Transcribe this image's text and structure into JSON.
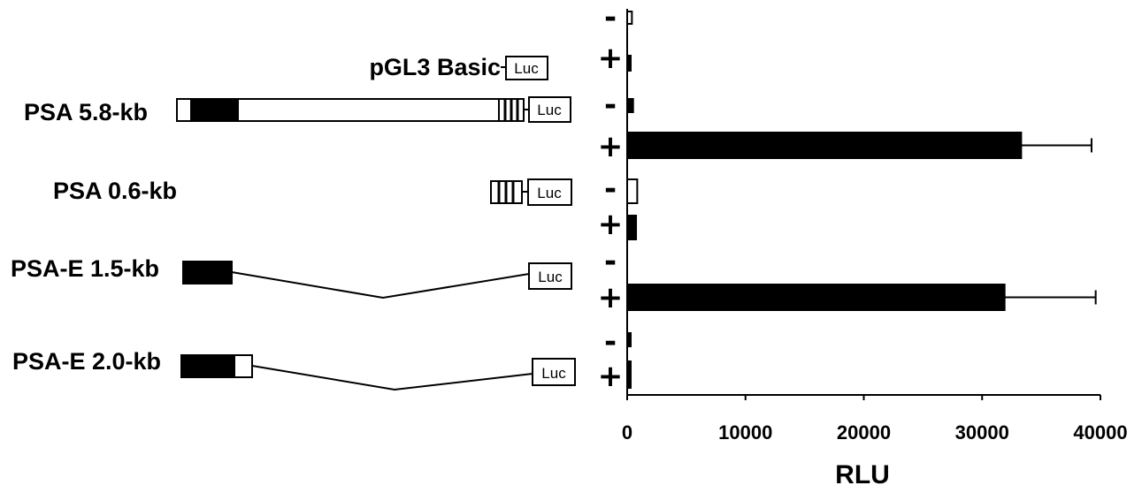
{
  "constructs": [
    {
      "label": "pGL3 Basic"
    },
    {
      "label": "PSA 5.8-kb"
    },
    {
      "label": "PSA 0.6-kb"
    },
    {
      "label": "PSA-E 1.5-kb"
    },
    {
      "label": "PSA-E 2.0-kb"
    }
  ],
  "luc_label": "Luc",
  "treatments": {
    "minus": "-",
    "plus": "+"
  },
  "chart_data": {
    "type": "bar",
    "orientation": "horizontal",
    "xlabel": "RLU",
    "xlim": [
      0,
      40000
    ],
    "x_ticks": [
      "0",
      "10000",
      "20000",
      "30000",
      "40000"
    ],
    "grid": false,
    "bars": [
      {
        "construct": "pGL3 Basic",
        "treatment": "-",
        "value": 400,
        "fill": "white",
        "error": null
      },
      {
        "construct": "pGL3 Basic",
        "treatment": "+",
        "value": 200,
        "fill": "black",
        "error": null
      },
      {
        "construct": "PSA 5.8-kb",
        "treatment": "-",
        "value": 500,
        "fill": "black",
        "error": null
      },
      {
        "construct": "PSA 5.8-kb",
        "treatment": "+",
        "value": 33300,
        "fill": "black",
        "error": 5950
      },
      {
        "construct": "PSA 0.6-kb",
        "treatment": "-",
        "value": 850,
        "fill": "white",
        "error": null
      },
      {
        "construct": "PSA 0.6-kb",
        "treatment": "+",
        "value": 750,
        "fill": "black",
        "error": null
      },
      {
        "construct": "PSA-E 1.5-kb",
        "treatment": "-",
        "value": 0,
        "fill": "white",
        "error": null
      },
      {
        "construct": "PSA-E 1.5-kb",
        "treatment": "+",
        "value": 31900,
        "fill": "black",
        "error": 7700
      },
      {
        "construct": "PSA-E 2.0-kb",
        "treatment": "-",
        "value": 200,
        "fill": "black",
        "error": null
      },
      {
        "construct": "PSA-E 2.0-kb",
        "treatment": "+",
        "value": 200,
        "fill": "black",
        "error": null
      }
    ]
  }
}
